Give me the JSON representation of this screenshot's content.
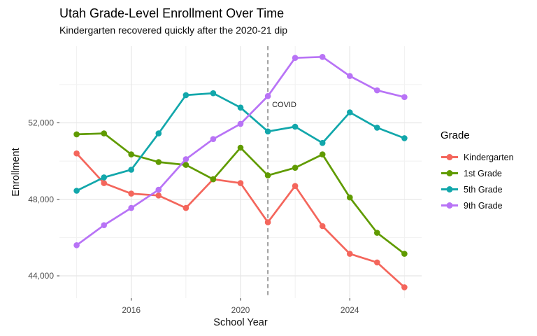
{
  "title": "Utah Grade-Level Enrollment Over Time",
  "subtitle": "Kindergarten recovered quickly after the 2020-21 dip",
  "chart_data": {
    "type": "line",
    "x": [
      2014,
      2015,
      2016,
      2017,
      2018,
      2019,
      2020,
      2021,
      2022,
      2023,
      2024,
      2025,
      2026
    ],
    "series": [
      {
        "name": "Kindergarten",
        "color": "#F4665C",
        "values": [
          50400,
          48850,
          48300,
          48200,
          47550,
          49050,
          48850,
          46800,
          48700,
          46600,
          45150,
          44700,
          43400
        ]
      },
      {
        "name": "1st Grade",
        "color": "#609B00",
        "values": [
          51400,
          51450,
          50350,
          49950,
          49800,
          49050,
          50700,
          49250,
          49650,
          50350,
          48100,
          46250,
          45150
        ]
      },
      {
        "name": "5th Grade",
        "color": "#12A7AB",
        "values": [
          48450,
          49150,
          49550,
          51450,
          53450,
          53550,
          52800,
          51550,
          51800,
          50950,
          52550,
          51750,
          51200
        ]
      },
      {
        "name": "9th Grade",
        "color": "#B873F6",
        "values": [
          45600,
          46650,
          47550,
          48500,
          50100,
          51150,
          51950,
          53400,
          55400,
          55450,
          54450,
          53700,
          53350
        ]
      }
    ],
    "xlabel": "School Year",
    "ylabel": "Enrollment",
    "x_ticks": {
      "values": [
        2016,
        2020,
        2024
      ],
      "labels": [
        "2016",
        "2020",
        "2024"
      ]
    },
    "y_ticks": {
      "values": [
        44000,
        48000,
        52000
      ],
      "labels": [
        "44,000",
        "48,000",
        "52,000"
      ]
    },
    "x_minor": [
      2014,
      2018,
      2022,
      2026
    ],
    "y_minor": [
      46000,
      50000,
      54000
    ],
    "x_range": [
      2013.37,
      2026.63
    ],
    "y_range": [
      42830,
      56010
    ],
    "grid": true,
    "legend_title": "Grade",
    "legend_position": "right",
    "annotation": {
      "label": "COVID",
      "x": 2021,
      "line_style": "dashed",
      "line_color": "#7f7f7f"
    }
  }
}
